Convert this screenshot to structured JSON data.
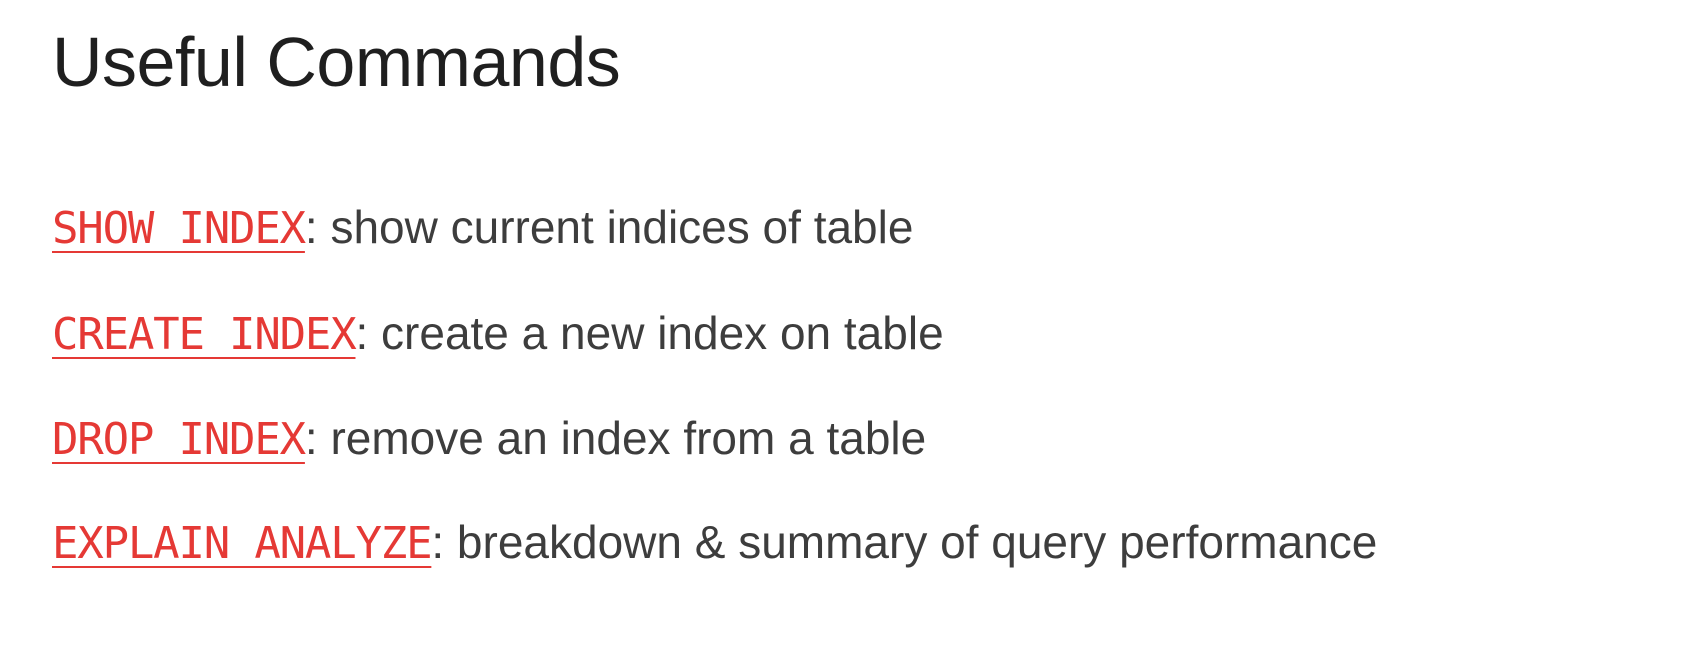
{
  "title": "Useful Commands",
  "commands": [
    {
      "code": "SHOW INDEX",
      "description": ": show current indices of table"
    },
    {
      "code": "CREATE INDEX",
      "description": ": create a new index on table"
    },
    {
      "code": "DROP INDEX",
      "description": ": remove an index from a table"
    },
    {
      "code": "EXPLAIN ANALYZE",
      "description": ": breakdown & summary of query performance"
    }
  ],
  "colors": {
    "command_code": "#e53935",
    "title_text": "#1f1f1f",
    "description_text": "#3d3d3d",
    "background": "#ffffff"
  }
}
